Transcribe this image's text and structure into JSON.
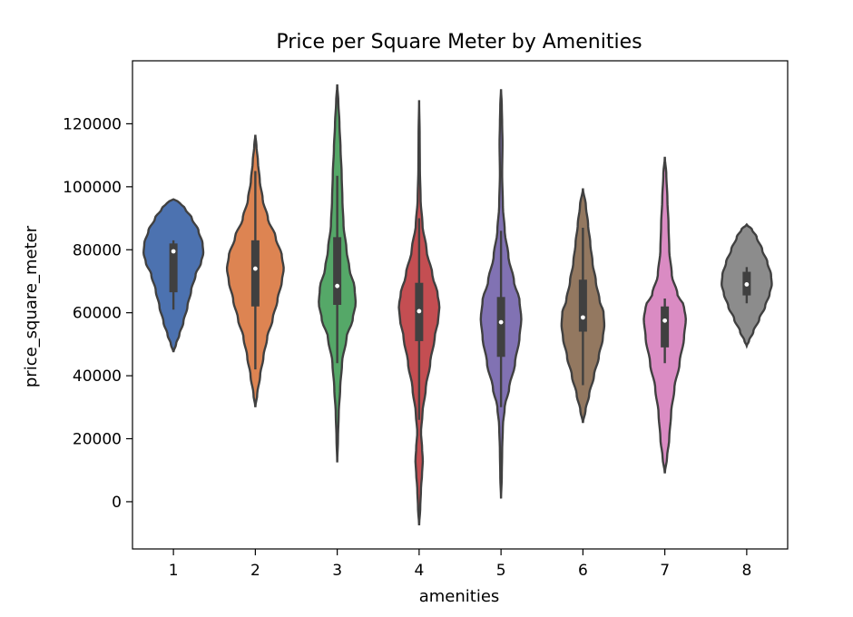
{
  "chart_data": {
    "type": "violin",
    "title": "Price per Square Meter by Amenities",
    "xlabel": "amenities",
    "ylabel": "price_square_meter",
    "categories": [
      "1",
      "2",
      "3",
      "4",
      "5",
      "6",
      "7",
      "8"
    ],
    "ylim": [
      -15000,
      140000
    ],
    "yticks": [
      0,
      20000,
      40000,
      60000,
      80000,
      100000,
      120000
    ],
    "ytick_labels": [
      "0",
      "20000",
      "40000",
      "60000",
      "80000",
      "100000",
      "120000"
    ],
    "grid": false,
    "colors": [
      "#4c72b0",
      "#dd8452",
      "#55a868",
      "#c44e52",
      "#8172b3",
      "#937860",
      "#da8bc3",
      "#8c8c8c"
    ],
    "series": [
      {
        "category": "1",
        "median": 79500,
        "q1": 66500,
        "q3": 82000,
        "whisker_low": 61000,
        "whisker_high": 83000,
        "extent": [
          47500,
          96000
        ],
        "profile": [
          [
            47500,
            0.0
          ],
          [
            50000,
            0.07
          ],
          [
            53000,
            0.16
          ],
          [
            57000,
            0.27
          ],
          [
            62000,
            0.38
          ],
          [
            67000,
            0.48
          ],
          [
            72000,
            0.6
          ],
          [
            76000,
            0.75
          ],
          [
            79000,
            0.81
          ],
          [
            82000,
            0.79
          ],
          [
            86000,
            0.68
          ],
          [
            90000,
            0.5
          ],
          [
            93000,
            0.32
          ],
          [
            95000,
            0.17
          ],
          [
            96000,
            0.0
          ]
        ]
      },
      {
        "category": "2",
        "median": 74000,
        "q1": 62000,
        "q3": 83000,
        "whisker_low": 42000,
        "whisker_high": 105000,
        "extent": [
          30000,
          116500
        ],
        "profile": [
          [
            30000,
            0.0
          ],
          [
            34000,
            0.05
          ],
          [
            40000,
            0.13
          ],
          [
            46000,
            0.22
          ],
          [
            52000,
            0.32
          ],
          [
            58000,
            0.47
          ],
          [
            64000,
            0.6
          ],
          [
            70000,
            0.72
          ],
          [
            74000,
            0.77
          ],
          [
            78000,
            0.72
          ],
          [
            84000,
            0.55
          ],
          [
            90000,
            0.34
          ],
          [
            96000,
            0.2
          ],
          [
            102000,
            0.12
          ],
          [
            108000,
            0.07
          ],
          [
            113000,
            0.03
          ],
          [
            116500,
            0.0
          ]
        ]
      },
      {
        "category": "3",
        "median": 68500,
        "q1": 62500,
        "q3": 84000,
        "whisker_low": 44000,
        "whisker_high": 103500,
        "extent": [
          12500,
          132500
        ],
        "profile": [
          [
            12500,
            0.0
          ],
          [
            20000,
            0.02
          ],
          [
            28000,
            0.04
          ],
          [
            36000,
            0.08
          ],
          [
            44000,
            0.13
          ],
          [
            52000,
            0.25
          ],
          [
            58000,
            0.42
          ],
          [
            63000,
            0.5
          ],
          [
            68000,
            0.47
          ],
          [
            74000,
            0.33
          ],
          [
            80000,
            0.25
          ],
          [
            88000,
            0.17
          ],
          [
            96000,
            0.14
          ],
          [
            104000,
            0.12
          ],
          [
            112000,
            0.09
          ],
          [
            120000,
            0.06
          ],
          [
            127000,
            0.03
          ],
          [
            132500,
            0.0
          ]
        ]
      },
      {
        "category": "4",
        "median": 60500,
        "q1": 51000,
        "q3": 69500,
        "whisker_low": 26000,
        "whisker_high": 90000,
        "extent": [
          -7500,
          127500
        ],
        "profile": [
          [
            -7500,
            0.0
          ],
          [
            -2000,
            0.03
          ],
          [
            4000,
            0.05
          ],
          [
            9000,
            0.08
          ],
          [
            13000,
            0.1
          ],
          [
            17000,
            0.08
          ],
          [
            22000,
            0.05
          ],
          [
            28000,
            0.09
          ],
          [
            36000,
            0.18
          ],
          [
            44000,
            0.3
          ],
          [
            52000,
            0.42
          ],
          [
            58000,
            0.52
          ],
          [
            62000,
            0.55
          ],
          [
            66000,
            0.5
          ],
          [
            72000,
            0.36
          ],
          [
            80000,
            0.2
          ],
          [
            88000,
            0.09
          ],
          [
            96000,
            0.04
          ],
          [
            106000,
            0.02
          ],
          [
            116000,
            0.015
          ],
          [
            127500,
            0.0
          ]
        ]
      },
      {
        "category": "5",
        "median": 57000,
        "q1": 46000,
        "q3": 65000,
        "whisker_low": 30000,
        "whisker_high": 86000,
        "extent": [
          1000,
          131000
        ],
        "profile": [
          [
            1000,
            0.0
          ],
          [
            8000,
            0.02
          ],
          [
            16000,
            0.03
          ],
          [
            24000,
            0.05
          ],
          [
            30000,
            0.1
          ],
          [
            36000,
            0.22
          ],
          [
            44000,
            0.38
          ],
          [
            52000,
            0.5
          ],
          [
            58000,
            0.55
          ],
          [
            64000,
            0.5
          ],
          [
            70000,
            0.35
          ],
          [
            78000,
            0.2
          ],
          [
            86000,
            0.1
          ],
          [
            94000,
            0.05
          ],
          [
            104000,
            0.03
          ],
          [
            114000,
            0.04
          ],
          [
            120000,
            0.03
          ],
          [
            126000,
            0.02
          ],
          [
            131000,
            0.0
          ]
        ]
      },
      {
        "category": "6",
        "median": 58500,
        "q1": 54000,
        "q3": 70500,
        "whisker_low": 37000,
        "whisker_high": 87000,
        "extent": [
          25000,
          99500
        ],
        "profile": [
          [
            25000,
            0.0
          ],
          [
            29000,
            0.07
          ],
          [
            34000,
            0.17
          ],
          [
            40000,
            0.3
          ],
          [
            46000,
            0.43
          ],
          [
            52000,
            0.54
          ],
          [
            56000,
            0.58
          ],
          [
            60000,
            0.56
          ],
          [
            64000,
            0.45
          ],
          [
            70000,
            0.35
          ],
          [
            76000,
            0.26
          ],
          [
            82000,
            0.2
          ],
          [
            88000,
            0.14
          ],
          [
            94000,
            0.08
          ],
          [
            99500,
            0.0
          ]
        ]
      },
      {
        "category": "7",
        "median": 57500,
        "q1": 49000,
        "q3": 62000,
        "whisker_low": 44000,
        "whisker_high": 64500,
        "extent": [
          9000,
          109500
        ],
        "profile": [
          [
            9000,
            0.0
          ],
          [
            14000,
            0.06
          ],
          [
            20000,
            0.12
          ],
          [
            28000,
            0.17
          ],
          [
            36000,
            0.26
          ],
          [
            44000,
            0.4
          ],
          [
            52000,
            0.52
          ],
          [
            58000,
            0.57
          ],
          [
            62000,
            0.52
          ],
          [
            66000,
            0.34
          ],
          [
            72000,
            0.19
          ],
          [
            80000,
            0.12
          ],
          [
            88000,
            0.1
          ],
          [
            96000,
            0.07
          ],
          [
            104000,
            0.04
          ],
          [
            109500,
            0.0
          ]
        ]
      },
      {
        "category": "8",
        "median": 69000,
        "q1": 65500,
        "q3": 73000,
        "whisker_low": 63000,
        "whisker_high": 74500,
        "extent": [
          49500,
          88000
        ],
        "profile": [
          [
            49500,
            0.0
          ],
          [
            51000,
            0.06
          ],
          [
            54000,
            0.18
          ],
          [
            58000,
            0.34
          ],
          [
            62000,
            0.5
          ],
          [
            66000,
            0.62
          ],
          [
            69000,
            0.68
          ],
          [
            72000,
            0.66
          ],
          [
            76000,
            0.56
          ],
          [
            80000,
            0.42
          ],
          [
            84000,
            0.27
          ],
          [
            86500,
            0.14
          ],
          [
            88000,
            0.0
          ]
        ]
      }
    ]
  }
}
